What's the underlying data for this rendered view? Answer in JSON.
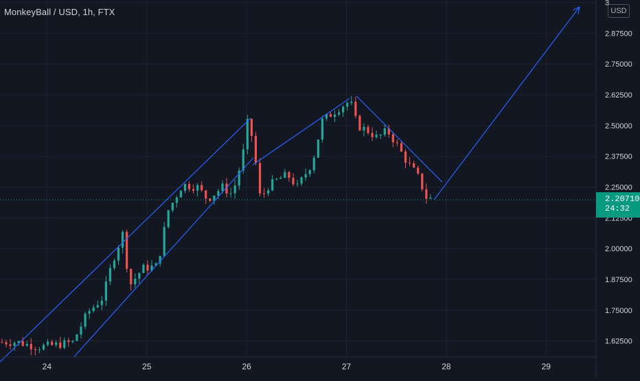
{
  "header": {
    "symbol_title": "MonkeyBall / USD, 1h, FTX",
    "currency": "USD"
  },
  "last_price": {
    "value": "2.20710",
    "countdown": "24:32",
    "color": "#089981"
  },
  "colors": {
    "background": "#131722",
    "grid": "#1f2330",
    "up": "#26a69a",
    "down": "#ef5350",
    "drawing": "#2962ff",
    "axis_text": "#d1d4dc"
  },
  "chart_data": {
    "type": "candlestick",
    "title": "MonkeyBall / USD, 1h, FTX",
    "x_tick_labels": [
      {
        "day": 24,
        "label": "24"
      },
      {
        "day": 25,
        "label": "25"
      },
      {
        "day": 26,
        "label": "26"
      },
      {
        "day": 27,
        "label": "27"
      },
      {
        "day": 28,
        "label": "28"
      },
      {
        "day": 29,
        "label": "29"
      }
    ],
    "y_tick_labels": [
      {
        "value": 3.0,
        "label": "3"
      },
      {
        "value": 2.875,
        "label": "2.87500"
      },
      {
        "value": 2.75,
        "label": "2.75000"
      },
      {
        "value": 2.625,
        "label": "2.62500"
      },
      {
        "value": 2.5,
        "label": "2.50000"
      },
      {
        "value": 2.375,
        "label": "2.37500"
      },
      {
        "value": 2.25,
        "label": "2.25000"
      },
      {
        "value": 2.125,
        "label": "2.12500"
      },
      {
        "value": 2.0,
        "label": "2.00000"
      },
      {
        "value": 1.875,
        "label": "1.87500"
      },
      {
        "value": 1.75,
        "label": "1.75000"
      },
      {
        "value": 1.625,
        "label": "1.62500"
      }
    ],
    "xlim": [
      23.53,
      29.5
    ],
    "ylim": [
      1.56,
      3.01
    ],
    "last_price": 2.2071,
    "anchors": [
      [
        23.55,
        1.62
      ],
      [
        23.75,
        1.62
      ],
      [
        23.95,
        1.6
      ],
      [
        24.15,
        1.61
      ],
      [
        24.3,
        1.62
      ],
      [
        24.45,
        1.74
      ],
      [
        24.6,
        1.8
      ],
      [
        24.7,
        1.95
      ],
      [
        24.8,
        2.06
      ],
      [
        24.87,
        1.85
      ],
      [
        25.0,
        1.92
      ],
      [
        25.15,
        1.93
      ],
      [
        25.25,
        2.15
      ],
      [
        25.4,
        2.26
      ],
      [
        25.55,
        2.25
      ],
      [
        25.65,
        2.2
      ],
      [
        25.8,
        2.25
      ],
      [
        25.9,
        2.22
      ],
      [
        26.0,
        2.37
      ],
      [
        26.05,
        2.51
      ],
      [
        26.1,
        2.45
      ],
      [
        26.18,
        2.2
      ],
      [
        26.25,
        2.25
      ],
      [
        26.35,
        2.28
      ],
      [
        26.45,
        2.3
      ],
      [
        26.55,
        2.25
      ],
      [
        26.7,
        2.35
      ],
      [
        26.8,
        2.52
      ],
      [
        26.9,
        2.55
      ],
      [
        27.0,
        2.58
      ],
      [
        27.08,
        2.6
      ],
      [
        27.15,
        2.5
      ],
      [
        27.25,
        2.48
      ],
      [
        27.35,
        2.45
      ],
      [
        27.45,
        2.48
      ],
      [
        27.55,
        2.42
      ],
      [
        27.65,
        2.35
      ],
      [
        27.75,
        2.3
      ],
      [
        27.85,
        2.2
      ]
    ],
    "drawings": [
      {
        "type": "trend_line",
        "from": [
          23.53,
          1.54
        ],
        "to": [
          26.04,
          2.53
        ]
      },
      {
        "type": "trend_line",
        "from": [
          24.27,
          1.56
        ],
        "to": [
          26.07,
          2.37
        ]
      },
      {
        "type": "trend_line",
        "from": [
          26.06,
          2.34
        ],
        "to": [
          27.03,
          2.61
        ]
      },
      {
        "type": "trend_line",
        "from": [
          27.1,
          2.62
        ],
        "to": [
          27.96,
          2.27
        ]
      },
      {
        "type": "arrow",
        "from": [
          27.88,
          2.2
        ],
        "to": [
          29.33,
          2.98
        ]
      }
    ]
  }
}
